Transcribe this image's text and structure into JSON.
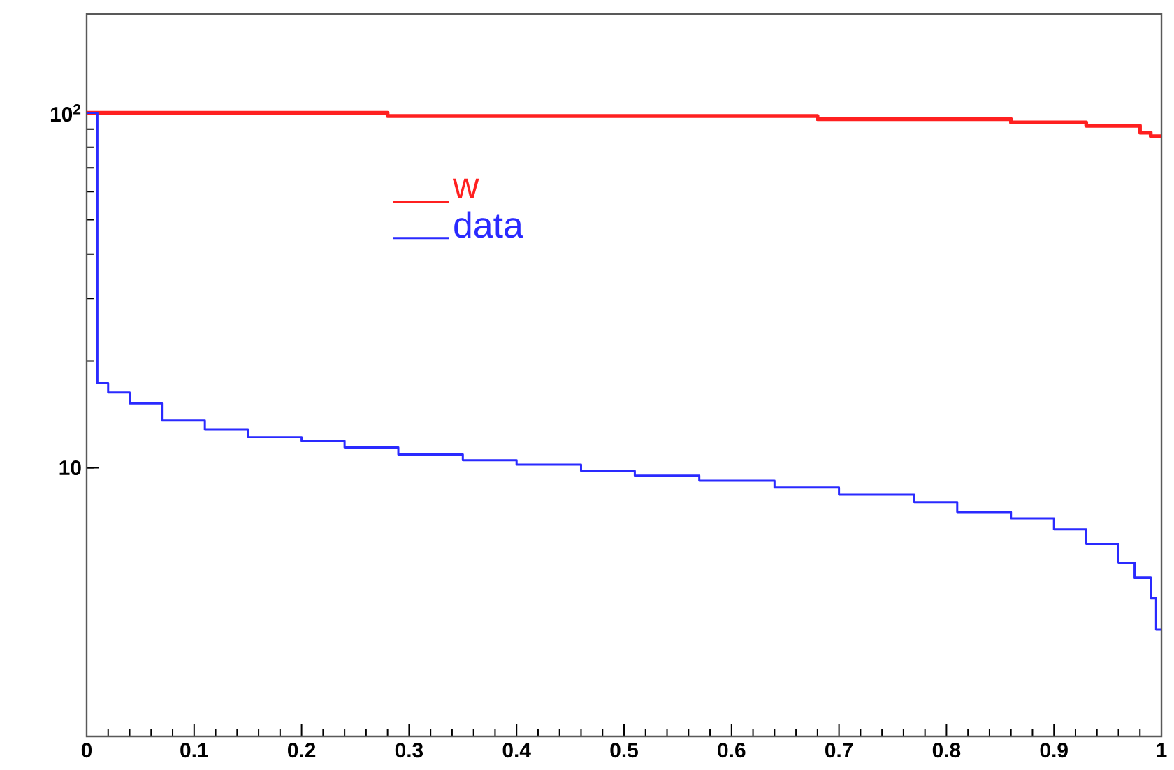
{
  "chart_data": {
    "type": "step",
    "log": "y",
    "xlim": [
      0,
      1
    ],
    "ylim": [
      1.75,
      190
    ],
    "xticks": [
      0,
      0.1,
      0.2,
      0.3,
      0.4,
      0.5,
      0.6,
      0.7,
      0.8,
      0.9,
      1
    ],
    "yticks": [
      10,
      {
        "value": 100,
        "label": "10$^{2}$"
      }
    ],
    "legend": "top",
    "series": [
      {
        "name": "w",
        "color": "#ff2020",
        "x": [
          0,
          0.28,
          0.68,
          0.86,
          0.93,
          0.98,
          0.99,
          1
        ],
        "values": [
          100,
          98,
          96,
          94,
          92,
          88,
          86,
          86
        ]
      },
      {
        "name": "data",
        "color": "#2a2aff",
        "x": [
          0,
          0.01,
          0.02,
          0.04,
          0.07,
          0.11,
          0.15,
          0.2,
          0.24,
          0.29,
          0.35,
          0.4,
          0.46,
          0.51,
          0.57,
          0.64,
          0.7,
          0.77,
          0.81,
          0.86,
          0.9,
          0.93,
          0.96,
          0.975,
          0.99,
          0.995,
          1.0
        ],
        "values": [
          100,
          17.3,
          16.3,
          15.2,
          13.6,
          12.8,
          12.2,
          11.9,
          11.4,
          10.9,
          10.5,
          10.2,
          9.8,
          9.5,
          9.2,
          8.8,
          8.4,
          8.0,
          7.5,
          7.2,
          6.7,
          6.1,
          5.4,
          4.9,
          4.3,
          3.5,
          3.5
        ]
      }
    ]
  }
}
